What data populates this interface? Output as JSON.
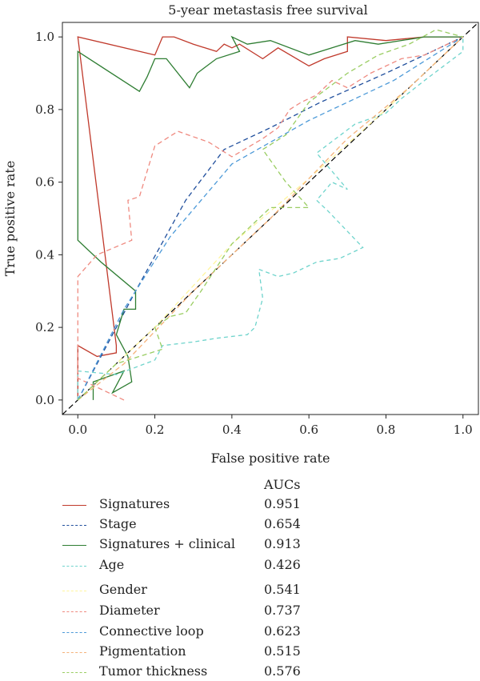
{
  "chart_data": {
    "type": "line",
    "title": "5-year metastasis free survival",
    "xlabel": "False positive rate",
    "ylabel": "True positive rate",
    "xlim": [
      -0.04,
      1.04
    ],
    "ylim": [
      -0.04,
      1.04
    ],
    "xticks": [
      "0.0",
      "0.2",
      "0.4",
      "0.6",
      "0.8",
      "1.0"
    ],
    "yticks": [
      "0.0",
      "0.2",
      "0.4",
      "0.6",
      "0.8",
      "1.0"
    ],
    "legend_header": "AUCs",
    "diagonal": true,
    "series": [
      {
        "name": "Signatures",
        "auc": "0.951",
        "color": "#c0392b",
        "dash": "solid",
        "points": [
          [
            0,
            0
          ],
          [
            0,
            0.15
          ],
          [
            0.05,
            0.12
          ],
          [
            0.1,
            0.13
          ],
          [
            0.1,
            0.15
          ],
          [
            0,
            1
          ],
          [
            0.2,
            0.95
          ],
          [
            0.22,
            1
          ],
          [
            0.25,
            1
          ],
          [
            0.3,
            0.98
          ],
          [
            0.36,
            0.96
          ],
          [
            0.38,
            0.98
          ],
          [
            0.4,
            0.97
          ],
          [
            0.42,
            0.98
          ],
          [
            0.48,
            0.94
          ],
          [
            0.52,
            0.97
          ],
          [
            0.6,
            0.92
          ],
          [
            0.64,
            0.94
          ],
          [
            0.7,
            0.96
          ],
          [
            0.7,
            1
          ],
          [
            0.8,
            0.99
          ],
          [
            0.9,
            1
          ],
          [
            1,
            1
          ]
        ]
      },
      {
        "name": "Stage",
        "auc": "0.654",
        "color": "#1f4e9c",
        "dash": "6,4",
        "points": [
          [
            0,
            0
          ],
          [
            0.15,
            0.3
          ],
          [
            0.28,
            0.55
          ],
          [
            0.38,
            0.69
          ],
          [
            0.5,
            0.75
          ],
          [
            0.63,
            0.82
          ],
          [
            0.8,
            0.9
          ],
          [
            1,
            1
          ]
        ]
      },
      {
        "name": "Signatures + clinical",
        "auc": "0.913",
        "color": "#2e7d32",
        "dash": "solid",
        "points": [
          [
            0.04,
            0
          ],
          [
            0.04,
            0.05
          ],
          [
            0.12,
            0.08
          ],
          [
            0.09,
            0.02
          ],
          [
            0.14,
            0.05
          ],
          [
            0.13,
            0.12
          ],
          [
            0.1,
            0.18
          ],
          [
            0.12,
            0.25
          ],
          [
            0.15,
            0.25
          ],
          [
            0.15,
            0.3
          ],
          [
            0.06,
            0.38
          ],
          [
            0,
            0.44
          ],
          [
            0,
            0.96
          ],
          [
            0.16,
            0.85
          ],
          [
            0.18,
            0.89
          ],
          [
            0.2,
            0.94
          ],
          [
            0.23,
            0.94
          ],
          [
            0.29,
            0.86
          ],
          [
            0.31,
            0.9
          ],
          [
            0.36,
            0.94
          ],
          [
            0.42,
            0.96
          ],
          [
            0.4,
            1
          ],
          [
            0.44,
            0.98
          ],
          [
            0.5,
            0.99
          ],
          [
            0.6,
            0.95
          ],
          [
            0.66,
            0.97
          ],
          [
            0.72,
            0.99
          ],
          [
            0.78,
            0.98
          ],
          [
            0.9,
            1
          ],
          [
            1,
            1
          ]
        ]
      },
      {
        "name": "Age",
        "auc": "0.426",
        "color": "#6fd4cc",
        "dash": "5,4",
        "points": [
          [
            0,
            0
          ],
          [
            0,
            0.08
          ],
          [
            0.1,
            0.07
          ],
          [
            0.2,
            0.11
          ],
          [
            0.22,
            0.15
          ],
          [
            0.3,
            0.16
          ],
          [
            0.36,
            0.17
          ],
          [
            0.44,
            0.18
          ],
          [
            0.46,
            0.2
          ],
          [
            0.48,
            0.28
          ],
          [
            0.47,
            0.36
          ],
          [
            0.52,
            0.34
          ],
          [
            0.56,
            0.35
          ],
          [
            0.62,
            0.38
          ],
          [
            0.68,
            0.39
          ],
          [
            0.74,
            0.42
          ],
          [
            0.65,
            0.52
          ],
          [
            0.62,
            0.55
          ],
          [
            0.66,
            0.6
          ],
          [
            0.7,
            0.58
          ],
          [
            0.62,
            0.68
          ],
          [
            0.72,
            0.76
          ],
          [
            0.8,
            0.79
          ],
          [
            0.84,
            0.83
          ],
          [
            0.9,
            0.88
          ],
          [
            1,
            0.96
          ],
          [
            1,
            1
          ]
        ]
      },
      {
        "name": "Gender",
        "auc": "0.541",
        "color": "#fff59d",
        "dash": "6,4",
        "points": [
          [
            0,
            0
          ],
          [
            0.2,
            0.2
          ],
          [
            0.4,
            0.43
          ],
          [
            0.6,
            0.61
          ],
          [
            0.8,
            0.8
          ],
          [
            1,
            1
          ]
        ]
      },
      {
        "name": "Diameter",
        "auc": "0.737",
        "color": "#ef8a80",
        "dash": "6,4",
        "points": [
          [
            0.12,
            0
          ],
          [
            0.08,
            0.02
          ],
          [
            0.04,
            0.04
          ],
          [
            0,
            0.06
          ],
          [
            0,
            0.34
          ],
          [
            0.05,
            0.4
          ],
          [
            0.14,
            0.44
          ],
          [
            0.13,
            0.55
          ],
          [
            0.16,
            0.56
          ],
          [
            0.18,
            0.63
          ],
          [
            0.2,
            0.7
          ],
          [
            0.26,
            0.74
          ],
          [
            0.34,
            0.71
          ],
          [
            0.4,
            0.67
          ],
          [
            0.48,
            0.72
          ],
          [
            0.52,
            0.75
          ],
          [
            0.55,
            0.8
          ],
          [
            0.58,
            0.82
          ],
          [
            0.62,
            0.84
          ],
          [
            0.66,
            0.88
          ],
          [
            0.7,
            0.86
          ],
          [
            0.76,
            0.9
          ],
          [
            0.84,
            0.94
          ],
          [
            0.9,
            0.95
          ],
          [
            1,
            1
          ]
        ]
      },
      {
        "name": "Connective loop",
        "auc": "0.623",
        "color": "#4d9ad8",
        "dash": "6,4",
        "points": [
          [
            0,
            0
          ],
          [
            0.12,
            0.25
          ],
          [
            0.24,
            0.45
          ],
          [
            0.4,
            0.65
          ],
          [
            0.6,
            0.77
          ],
          [
            0.82,
            0.88
          ],
          [
            1,
            1
          ]
        ]
      },
      {
        "name": "Pigmentation",
        "auc": "0.515",
        "color": "#f5b27a",
        "dash": "6,4",
        "points": [
          [
            0,
            0
          ],
          [
            0.12,
            0.1
          ],
          [
            0.3,
            0.3
          ],
          [
            0.5,
            0.5
          ],
          [
            0.7,
            0.72
          ],
          [
            0.86,
            0.86
          ],
          [
            1,
            1
          ]
        ]
      },
      {
        "name": "Tumor thickness",
        "auc": "0.576",
        "color": "#9acd62",
        "dash": "6,4",
        "points": [
          [
            0,
            0
          ],
          [
            0.1,
            0.1
          ],
          [
            0.22,
            0.14
          ],
          [
            0.2,
            0.2
          ],
          [
            0.24,
            0.23
          ],
          [
            0.28,
            0.24
          ],
          [
            0.32,
            0.3
          ],
          [
            0.4,
            0.43
          ],
          [
            0.5,
            0.53
          ],
          [
            0.6,
            0.53
          ],
          [
            0.54,
            0.6
          ],
          [
            0.48,
            0.69
          ],
          [
            0.54,
            0.73
          ],
          [
            0.6,
            0.82
          ],
          [
            0.7,
            0.9
          ],
          [
            0.78,
            0.95
          ],
          [
            0.86,
            0.98
          ],
          [
            0.93,
            1.02
          ],
          [
            1,
            1
          ]
        ]
      }
    ]
  }
}
